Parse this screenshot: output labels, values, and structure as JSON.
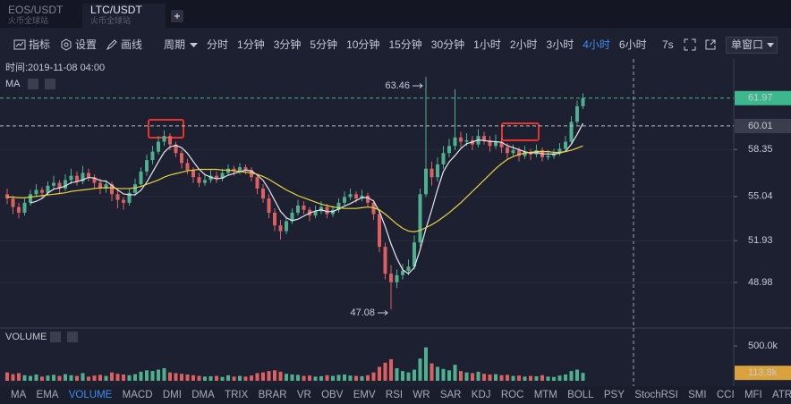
{
  "tabs": [
    {
      "symbol": "EOS/USDT",
      "exchange": "火币全球站"
    },
    {
      "symbol": "LTC/USDT",
      "exchange": "火币全球站"
    }
  ],
  "active_tab": 1,
  "toolbar": {
    "tools": [
      "指标",
      "设置",
      "画线"
    ],
    "period_label": "周期",
    "periods": [
      "分时",
      "1分钟",
      "3分钟",
      "5分钟",
      "10分钟",
      "15分钟",
      "30分钟",
      "1小时",
      "2小时",
      "3小时",
      "4小时",
      "6小时"
    ],
    "active_period": 10,
    "refresh": "7s",
    "window_mode": "单窗口"
  },
  "indicators": [
    "MA",
    "EMA",
    "VOLUME",
    "MACD",
    "DMI",
    "DMA",
    "TRIX",
    "BRAR",
    "VR",
    "OBV",
    "EMV",
    "RSI",
    "WR",
    "SAR",
    "KDJ",
    "ROC",
    "MTM",
    "BOLL",
    "PSY",
    "StochRSI",
    "SMI",
    "CCI",
    "MFI",
    "ATR"
  ],
  "active_indicator": 2,
  "chart_data": {
    "type": "candlestick",
    "crosshair_time": "时间:2019-11-08 04:00",
    "main_indicator": "MA",
    "up_color": "#4fb08f",
    "down_color": "#dc5f62",
    "ylim": [
      45.9,
      64.6
    ],
    "yticks": [
      48.98,
      51.93,
      55.04,
      58.35
    ],
    "grid": true,
    "last_price": {
      "value": 61.97,
      "color": "#3cb88c"
    },
    "crosshair_price": {
      "value": 60.01,
      "color": "#3a3e4c"
    },
    "candles": [
      [
        55.2,
        55.6,
        54.5,
        54.9
      ],
      [
        54.9,
        55.1,
        53.8,
        54.3
      ],
      [
        54.3,
        54.6,
        53.5,
        53.9
      ],
      [
        53.9,
        54.9,
        53.7,
        54.6
      ],
      [
        54.6,
        55.5,
        54.4,
        55.2
      ],
      [
        55.2,
        55.9,
        55.0,
        55.5
      ],
      [
        55.5,
        55.7,
        54.9,
        55.3
      ],
      [
        55.3,
        56.1,
        55.1,
        55.8
      ],
      [
        55.8,
        56.5,
        55.5,
        56.0
      ],
      [
        56.0,
        56.2,
        55.2,
        55.6
      ],
      [
        55.6,
        56.6,
        55.4,
        56.2
      ],
      [
        56.2,
        57.0,
        55.9,
        56.5
      ],
      [
        56.5,
        56.8,
        55.8,
        56.1
      ],
      [
        56.1,
        57.2,
        55.9,
        56.7
      ],
      [
        56.7,
        57.0,
        56.1,
        56.4
      ],
      [
        56.4,
        56.6,
        55.6,
        56.0
      ],
      [
        56.0,
        56.3,
        55.2,
        55.6
      ],
      [
        55.6,
        56.2,
        55.3,
        55.9
      ],
      [
        55.9,
        56.1,
        54.7,
        55.2
      ],
      [
        55.2,
        55.5,
        54.2,
        54.8
      ],
      [
        54.8,
        55.0,
        54.1,
        54.6
      ],
      [
        54.6,
        55.6,
        54.4,
        55.3
      ],
      [
        55.3,
        56.3,
        55.1,
        55.9
      ],
      [
        55.9,
        57.1,
        55.7,
        56.8
      ],
      [
        56.8,
        58.0,
        56.5,
        57.6
      ],
      [
        57.6,
        58.6,
        57.3,
        58.2
      ],
      [
        58.2,
        59.3,
        58.0,
        58.9
      ],
      [
        58.9,
        59.7,
        58.6,
        59.3
      ],
      [
        59.3,
        59.5,
        58.3,
        58.7
      ],
      [
        58.7,
        58.9,
        57.8,
        58.1
      ],
      [
        58.1,
        58.3,
        57.0,
        57.4
      ],
      [
        57.4,
        57.7,
        56.6,
        56.9
      ],
      [
        56.9,
        57.1,
        56.0,
        56.4
      ],
      [
        56.4,
        56.7,
        55.7,
        56.0
      ],
      [
        56.0,
        56.6,
        55.8,
        56.2
      ],
      [
        56.2,
        56.9,
        56.0,
        56.5
      ],
      [
        56.5,
        56.8,
        56.0,
        56.3
      ],
      [
        56.3,
        57.0,
        56.1,
        56.7
      ],
      [
        56.7,
        57.3,
        56.5,
        57.0
      ],
      [
        57.0,
        57.2,
        56.5,
        56.8
      ],
      [
        56.8,
        57.4,
        56.6,
        57.1
      ],
      [
        57.1,
        57.3,
        56.6,
        56.9
      ],
      [
        56.9,
        57.1,
        56.1,
        56.4
      ],
      [
        56.4,
        56.6,
        55.2,
        55.6
      ],
      [
        55.6,
        55.9,
        54.6,
        54.9
      ],
      [
        54.9,
        55.2,
        53.5,
        53.9
      ],
      [
        53.9,
        54.2,
        52.6,
        53.0
      ],
      [
        53.0,
        53.4,
        52.0,
        52.6
      ],
      [
        52.6,
        53.6,
        52.4,
        53.3
      ],
      [
        53.3,
        54.2,
        53.1,
        53.9
      ],
      [
        53.9,
        54.8,
        53.7,
        54.4
      ],
      [
        54.4,
        54.7,
        53.8,
        54.1
      ],
      [
        54.1,
        54.3,
        53.3,
        53.7
      ],
      [
        53.7,
        54.4,
        53.5,
        54.0
      ],
      [
        54.0,
        54.7,
        53.8,
        54.3
      ],
      [
        54.3,
        54.5,
        53.5,
        53.8
      ],
      [
        53.8,
        54.4,
        53.6,
        54.1
      ],
      [
        54.1,
        54.9,
        53.9,
        54.6
      ],
      [
        54.6,
        55.4,
        54.4,
        55.0
      ],
      [
        55.0,
        55.6,
        54.8,
        55.2
      ],
      [
        55.2,
        55.4,
        54.6,
        54.9
      ],
      [
        54.9,
        55.5,
        54.7,
        55.1
      ],
      [
        55.1,
        55.3,
        54.3,
        54.6
      ],
      [
        54.6,
        54.8,
        53.4,
        53.8
      ],
      [
        53.8,
        54.0,
        51.1,
        51.5
      ],
      [
        51.5,
        51.8,
        49.2,
        49.6
      ],
      [
        49.6,
        50.2,
        47.08,
        49.0
      ],
      [
        49.0,
        49.9,
        48.6,
        49.5
      ],
      [
        49.5,
        50.3,
        49.2,
        49.8
      ],
      [
        49.8,
        50.6,
        49.5,
        50.1
      ],
      [
        50.1,
        52.3,
        49.9,
        51.8
      ],
      [
        51.8,
        55.6,
        51.5,
        55.2
      ],
      [
        55.2,
        63.46,
        55.0,
        57.0
      ],
      [
        57.0,
        57.5,
        55.8,
        56.4
      ],
      [
        56.4,
        57.8,
        56.1,
        57.3
      ],
      [
        57.3,
        58.6,
        57.0,
        58.1
      ],
      [
        58.1,
        59.1,
        57.8,
        58.6
      ],
      [
        58.6,
        62.6,
        58.3,
        59.2
      ],
      [
        59.2,
        59.6,
        58.5,
        58.9
      ],
      [
        58.9,
        59.5,
        58.6,
        59.0
      ],
      [
        59.0,
        59.3,
        58.3,
        58.7
      ],
      [
        58.7,
        59.8,
        58.5,
        59.3
      ],
      [
        59.3,
        59.6,
        58.7,
        59.0
      ],
      [
        59.0,
        59.3,
        58.2,
        58.6
      ],
      [
        58.6,
        59.4,
        58.4,
        58.9
      ],
      [
        58.9,
        59.2,
        58.1,
        58.5
      ],
      [
        58.5,
        58.8,
        57.7,
        58.1
      ],
      [
        58.1,
        58.7,
        57.9,
        58.3
      ],
      [
        58.3,
        58.5,
        57.5,
        57.9
      ],
      [
        57.9,
        58.6,
        57.7,
        58.2
      ],
      [
        58.2,
        58.4,
        57.6,
        58.0
      ],
      [
        58.0,
        58.7,
        57.8,
        58.3
      ],
      [
        58.3,
        58.5,
        57.5,
        57.8
      ],
      [
        57.8,
        58.3,
        57.6,
        57.9
      ],
      [
        57.9,
        58.4,
        57.7,
        58.1
      ],
      [
        58.1,
        58.8,
        57.9,
        58.4
      ],
      [
        58.4,
        59.3,
        58.2,
        58.9
      ],
      [
        58.9,
        60.7,
        58.7,
        60.3
      ],
      [
        60.3,
        61.8,
        60.1,
        61.4
      ],
      [
        61.4,
        62.3,
        61.2,
        61.97
      ]
    ],
    "ma_series": [
      {
        "color": "#e6e6ee",
        "values": [
          null,
          null,
          null,
          null,
          54.58,
          54.7,
          54.9,
          55.28,
          55.56,
          55.64,
          55.78,
          56.02,
          56.08,
          56.22,
          56.38,
          56.34,
          56.16,
          56.12,
          55.82,
          55.5,
          55.22,
          55.16,
          55.16,
          55.48,
          56.04,
          56.76,
          57.48,
          58.16,
          58.54,
          58.64,
          58.48,
          58.08,
          57.5,
          56.96,
          56.58,
          56.4,
          56.28,
          56.34,
          56.54,
          56.66,
          56.78,
          56.9,
          56.84,
          56.56,
          56.18,
          55.54,
          54.76,
          54.0,
          53.54,
          53.34,
          53.44,
          53.66,
          53.88,
          54.02,
          54.1,
          53.98,
          53.98,
          54.16,
          54.36,
          54.54,
          54.76,
          54.96,
          54.96,
          54.72,
          53.98,
          52.92,
          51.7,
          50.68,
          49.88,
          49.6,
          50.04,
          51.28,
          52.78,
          54.1,
          55.54,
          56.8,
          57.48,
          57.92,
          58.42,
          58.76,
          58.88,
          59.02,
          58.98,
          58.92,
          58.9,
          58.86,
          58.62,
          58.48,
          58.34,
          58.2,
          58.1,
          58.14,
          58.04,
          58.04,
          58.02,
          58.1,
          58.22,
          58.72,
          59.42,
          60.19
        ]
      },
      {
        "color": "#e8d33f",
        "values": [
          55.0,
          55.0,
          54.95,
          54.95,
          55.0,
          55.05,
          55.1,
          55.15,
          55.2,
          55.25,
          55.3,
          55.4,
          55.45,
          55.5,
          55.55,
          55.6,
          55.65,
          55.65,
          55.65,
          55.6,
          55.6,
          55.6,
          55.65,
          55.75,
          55.9,
          56.05,
          56.2,
          56.4,
          56.55,
          56.65,
          56.75,
          56.85,
          56.9,
          56.95,
          56.95,
          56.95,
          56.95,
          56.9,
          56.9,
          56.85,
          56.8,
          56.75,
          56.7,
          56.6,
          56.45,
          56.25,
          56.0,
          55.75,
          55.5,
          55.3,
          55.1,
          54.95,
          54.8,
          54.65,
          54.5,
          54.4,
          54.3,
          54.25,
          54.2,
          54.2,
          54.2,
          54.25,
          54.3,
          54.25,
          54.1,
          53.8,
          53.45,
          53.1,
          52.8,
          52.6,
          52.55,
          52.65,
          52.85,
          53.05,
          53.3,
          53.6,
          53.9,
          54.25,
          54.6,
          55.0,
          55.4,
          55.8,
          56.2,
          56.6,
          57.0,
          57.35,
          57.65,
          57.85,
          58.0,
          58.1,
          58.15,
          58.2,
          58.2,
          58.2,
          58.15,
          58.15,
          58.2,
          58.3,
          58.45,
          58.6
        ]
      }
    ],
    "volume": {
      "title": "VOLUME",
      "ylim": [
        0,
        720000
      ],
      "yticks": [
        {
          "value": 500000,
          "label": "500.0k"
        }
      ],
      "last_marker": {
        "value": 113800,
        "label": "113.8k",
        "color": "#d9a23c"
      },
      "values": [
        120000,
        95000,
        110000,
        80000,
        70000,
        90000,
        60000,
        75000,
        85000,
        70000,
        95000,
        80000,
        70000,
        110000,
        60000,
        75000,
        85000,
        70000,
        120000,
        100000,
        90000,
        80000,
        95000,
        130000,
        150000,
        140000,
        160000,
        180000,
        120000,
        110000,
        100000,
        90000,
        80000,
        70000,
        60000,
        65000,
        70000,
        55000,
        80000,
        60000,
        70000,
        60000,
        75000,
        110000,
        120000,
        140000,
        150000,
        130000,
        100000,
        90000,
        85000,
        70000,
        75000,
        60000,
        65000,
        80000,
        70000,
        85000,
        90000,
        75000,
        70000,
        65000,
        80000,
        120000,
        200000,
        260000,
        310000,
        180000,
        140000,
        120000,
        160000,
        320000,
        480000,
        250000,
        200000,
        170000,
        150000,
        230000,
        140000,
        120000,
        110000,
        130000,
        100000,
        90000,
        95000,
        80000,
        85000,
        70000,
        75000,
        60000,
        70000,
        65000,
        80000,
        60000,
        55000,
        75000,
        90000,
        140000,
        160000,
        113800
      ]
    }
  }
}
